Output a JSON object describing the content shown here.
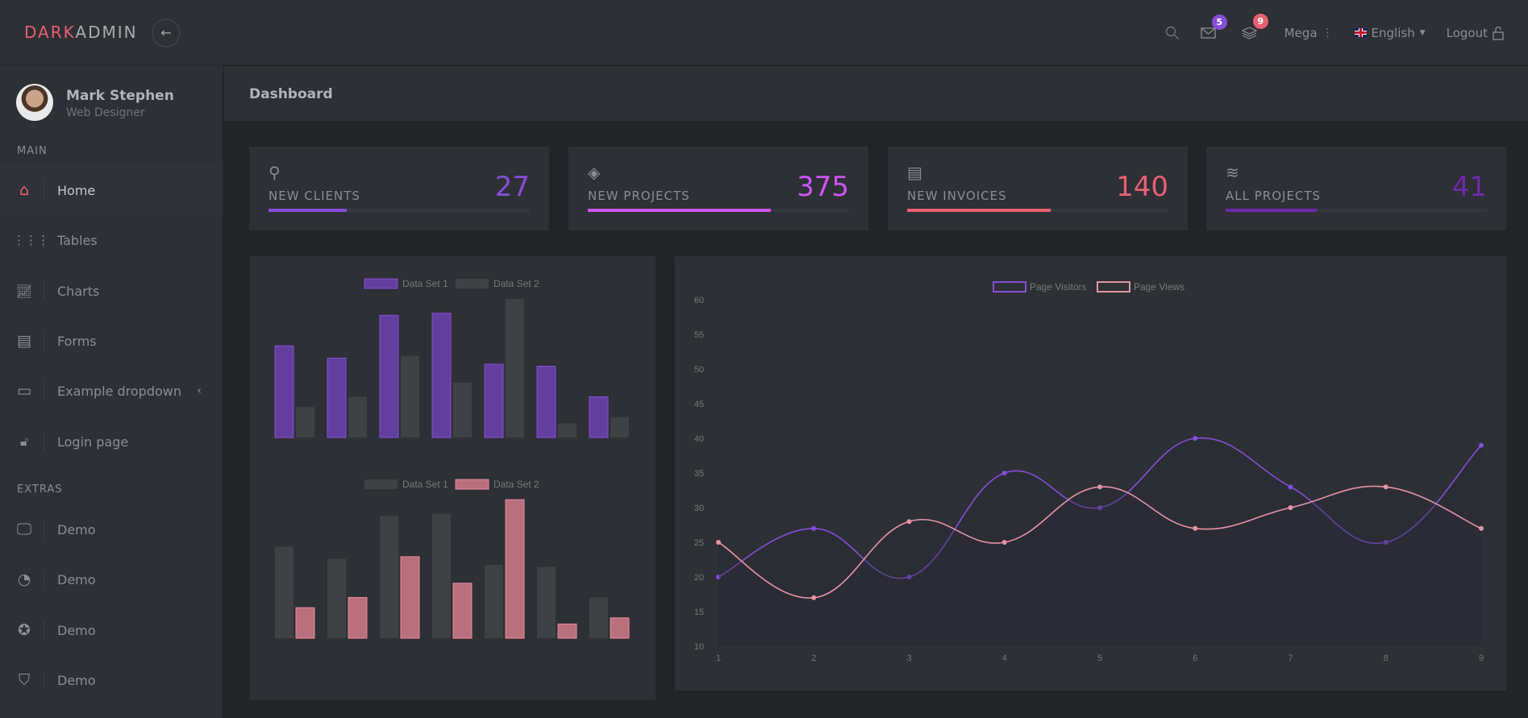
{
  "header": {
    "brand_part1": "DARK",
    "brand_part2": "ADMIN",
    "back_icon": "arrow-left-icon",
    "mail_count": "5",
    "notif_count": "9",
    "mega": "Mega",
    "language": "English",
    "logout": "Logout"
  },
  "colors": {
    "purple": "#864dd9",
    "pink": "#e95f71",
    "violet": "#cf53f9",
    "dark_purple": "#7127ac",
    "bar_purple": "#633f9d",
    "bar_gray": "#404145",
    "bar_pink": "#b8717c",
    "views_line": "#e7939f"
  },
  "user": {
    "name": "Mark Stephen",
    "role": "Web Designer"
  },
  "sidebar": {
    "main_heading": "MAIN",
    "extras_heading": "EXTRAS",
    "items": [
      {
        "label": "Home",
        "icon": "home-icon"
      },
      {
        "label": "Tables",
        "icon": "grid-icon"
      },
      {
        "label": "Charts",
        "icon": "chart-icon"
      },
      {
        "label": "Forms",
        "icon": "clipboard-icon"
      },
      {
        "label": "Example dropdown",
        "icon": "browser-window-icon"
      },
      {
        "label": "Login page",
        "icon": "lock-icon"
      }
    ],
    "extras": [
      {
        "label": "Demo",
        "icon": "monitor-icon"
      },
      {
        "label": "Demo",
        "icon": "pie-chart-icon"
      },
      {
        "label": "Demo",
        "icon": "award-icon"
      },
      {
        "label": "Demo",
        "icon": "shield-icon"
      }
    ]
  },
  "page": {
    "title": "Dashboard"
  },
  "cards": [
    {
      "label": "NEW CLIENTS",
      "value": "27",
      "progress": 30,
      "icon": "user-icon"
    },
    {
      "label": "NEW PROJECTS",
      "value": "375",
      "progress": 70,
      "icon": "layers-icon"
    },
    {
      "label": "NEW INVOICES",
      "value": "140",
      "progress": 55,
      "icon": "clipboard-icon"
    },
    {
      "label": "ALL PROJECTS",
      "value": "41",
      "progress": 35,
      "icon": "stack-icon"
    }
  ],
  "chart_data": [
    {
      "type": "bar",
      "series": [
        {
          "name": "Data Set 1",
          "values": [
            65,
            59,
            80,
            81,
            56,
            55,
            40
          ]
        },
        {
          "name": "Data Set 2",
          "values": [
            35,
            40,
            60,
            47,
            88,
            27,
            30
          ]
        }
      ],
      "ylim": [
        20,
        90
      ],
      "legend": "top",
      "grid": false,
      "axes_visible": false
    },
    {
      "type": "bar",
      "series": [
        {
          "name": "Data Set 1",
          "values": [
            65,
            59,
            80,
            81,
            56,
            55,
            40
          ]
        },
        {
          "name": "Data Set 2",
          "values": [
            35,
            40,
            60,
            47,
            88,
            27,
            30
          ]
        }
      ],
      "ylim": [
        20,
        90
      ],
      "legend": "top",
      "grid": false,
      "axes_visible": false
    },
    {
      "type": "line",
      "x": [
        1,
        2,
        3,
        4,
        5,
        6,
        7,
        8,
        9
      ],
      "series": [
        {
          "name": "Page Visitors",
          "values": [
            20,
            27,
            20,
            35,
            30,
            40,
            33,
            25,
            39
          ]
        },
        {
          "name": "Page Views",
          "values": [
            25,
            17,
            28,
            25,
            33,
            27,
            30,
            33,
            27
          ]
        }
      ],
      "ylim": [
        10,
        60
      ],
      "yticks": [
        60,
        55,
        50,
        45,
        40,
        35,
        30,
        25,
        20,
        15,
        10
      ],
      "legend": "top",
      "grid": false
    }
  ]
}
